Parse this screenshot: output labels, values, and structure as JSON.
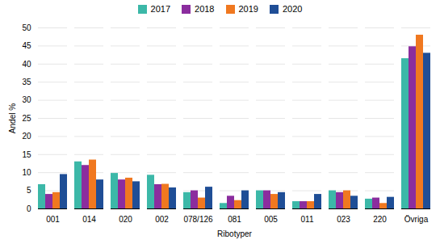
{
  "chart_data": {
    "type": "bar",
    "xlabel": "Ribotyper",
    "ylabel": "Andel %",
    "categories": [
      "001",
      "014",
      "020",
      "002",
      "078/126",
      "081",
      "005",
      "011",
      "023",
      "220",
      "Övriga"
    ],
    "series": [
      {
        "name": "2017",
        "color": "#3cb8a8",
        "values": [
          6.7,
          13.0,
          9.8,
          9.3,
          4.5,
          1.5,
          5.0,
          2.0,
          5.0,
          2.7,
          41.5
        ]
      },
      {
        "name": "2018",
        "color": "#8b2d9e",
        "values": [
          4.0,
          12.0,
          8.0,
          6.7,
          5.0,
          3.5,
          5.0,
          2.0,
          4.5,
          3.0,
          44.8
        ]
      },
      {
        "name": "2019",
        "color": "#f07820",
        "values": [
          4.5,
          13.5,
          8.5,
          6.8,
          3.0,
          2.3,
          4.0,
          2.0,
          5.0,
          1.5,
          48.0
        ]
      },
      {
        "name": "2020",
        "color": "#1f4e96",
        "values": [
          9.5,
          8.0,
          7.5,
          5.8,
          6.0,
          5.0,
          4.5,
          4.0,
          3.5,
          3.2,
          43.0
        ]
      }
    ],
    "ylim": [
      0,
      50
    ],
    "yticks": [
      0,
      5,
      10,
      15,
      20,
      25,
      30,
      35,
      40,
      45,
      50
    ],
    "grid": true,
    "legend": "top"
  }
}
